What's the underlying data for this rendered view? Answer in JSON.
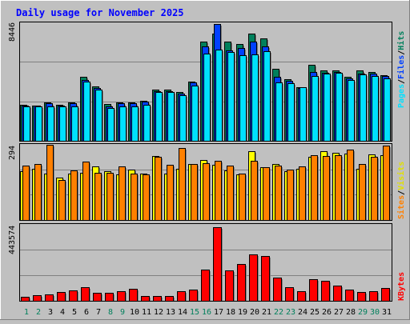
{
  "title": "Daily usage for November 2025",
  "colors": {
    "background": "#c0c0c0",
    "title": "#0000ff",
    "hits": "#00805c",
    "files": "#0040ff",
    "pages": "#00e0ff",
    "visits": "#ffff00",
    "sites": "#ff8000",
    "kbytes": "#ff0000",
    "weekend_label": "#00805c",
    "weekday_label": "#000000"
  },
  "legend": {
    "pages": "Pages",
    "files": "Files",
    "hits": "Hits",
    "sep": "/",
    "visits": "Visits",
    "sites": "Sites",
    "kbytes": "KBytes"
  },
  "chart_data": [
    {
      "type": "bar",
      "name": "hits-files-pages",
      "ymax_label": "8446",
      "ylim": [
        0,
        8446
      ],
      "x": [
        "1",
        "2",
        "3",
        "4",
        "5",
        "6",
        "7",
        "8",
        "9",
        "10",
        "11",
        "12",
        "13",
        "14",
        "15",
        "16",
        "17",
        "18",
        "19",
        "20",
        "21",
        "22",
        "23",
        "24",
        "25",
        "26",
        "27",
        "28",
        "29",
        "30",
        "31"
      ],
      "series": [
        {
          "name": "Hits",
          "values": [
            2580,
            2560,
            2780,
            2580,
            2800,
            4600,
            3920,
            2660,
            2800,
            2800,
            2900,
            3700,
            3700,
            3500,
            4280,
            7150,
            7750,
            7150,
            7000,
            7750,
            7380,
            5200,
            4450,
            3900,
            5500,
            5100,
            5100,
            4600,
            5100,
            5000,
            4760
          ]
        },
        {
          "name": "Files",
          "values": [
            2540,
            2540,
            2700,
            2560,
            2740,
            4420,
            3800,
            2480,
            2740,
            2740,
            2820,
            3580,
            3600,
            3400,
            4200,
            6850,
            8446,
            6550,
            6700,
            7150,
            6800,
            4600,
            4350,
            3800,
            5000,
            4920,
            4960,
            4500,
            4860,
            4840,
            4700
          ]
        },
        {
          "name": "Pages",
          "values": [
            2500,
            2500,
            2500,
            2460,
            2500,
            4300,
            3680,
            2400,
            2460,
            2480,
            2600,
            3500,
            3500,
            3300,
            3980,
            6300,
            6600,
            6450,
            6200,
            6250,
            6500,
            4200,
            4150,
            3850,
            4700,
            4860,
            4900,
            4420,
            4800,
            4700,
            4500
          ]
        }
      ]
    },
    {
      "type": "bar",
      "name": "visits-sites",
      "ymax_label": "294",
      "ylim": [
        0,
        294
      ],
      "x": [
        "1",
        "2",
        "3",
        "4",
        "5",
        "6",
        "7",
        "8",
        "9",
        "10",
        "11",
        "12",
        "13",
        "14",
        "15",
        "16",
        "17",
        "18",
        "19",
        "20",
        "21",
        "22",
        "23",
        "24",
        "25",
        "26",
        "27",
        "28",
        "29",
        "30",
        "31"
      ],
      "series": [
        {
          "name": "Visits",
          "values": [
            190,
            200,
            180,
            165,
            182,
            185,
            210,
            190,
            178,
            196,
            182,
            250,
            182,
            200,
            220,
            235,
            215,
            195,
            177,
            268,
            205,
            220,
            192,
            200,
            248,
            268,
            264,
            260,
            200,
            255,
            252
          ]
        },
        {
          "name": "Sites",
          "values": [
            212,
            218,
            294,
            156,
            194,
            228,
            186,
            186,
            208,
            180,
            178,
            246,
            216,
            282,
            220,
            222,
            230,
            212,
            180,
            230,
            206,
            212,
            196,
            210,
            252,
            250,
            254,
            274,
            220,
            248,
            292
          ]
        }
      ]
    },
    {
      "type": "bar",
      "name": "kbytes",
      "ymax_label": "443574",
      "ylim": [
        0,
        443574
      ],
      "x": [
        "1",
        "2",
        "3",
        "4",
        "5",
        "6",
        "7",
        "8",
        "9",
        "10",
        "11",
        "12",
        "13",
        "14",
        "15",
        "16",
        "17",
        "18",
        "19",
        "20",
        "21",
        "22",
        "23",
        "24",
        "25",
        "26",
        "27",
        "28",
        "29",
        "30",
        "31"
      ],
      "series": [
        {
          "name": "KBytes",
          "values": [
            25000,
            32000,
            37000,
            51000,
            62000,
            80000,
            50000,
            50000,
            57000,
            72000,
            28000,
            30000,
            30000,
            56000,
            66000,
            186000,
            443574,
            184000,
            220000,
            280000,
            268000,
            142000,
            82000,
            57000,
            130000,
            120000,
            92000,
            66000,
            52000,
            60000,
            78000
          ]
        }
      ]
    }
  ],
  "weekend_days": [
    "1",
    "2",
    "8",
    "9",
    "15",
    "16",
    "22",
    "23",
    "29",
    "30"
  ]
}
